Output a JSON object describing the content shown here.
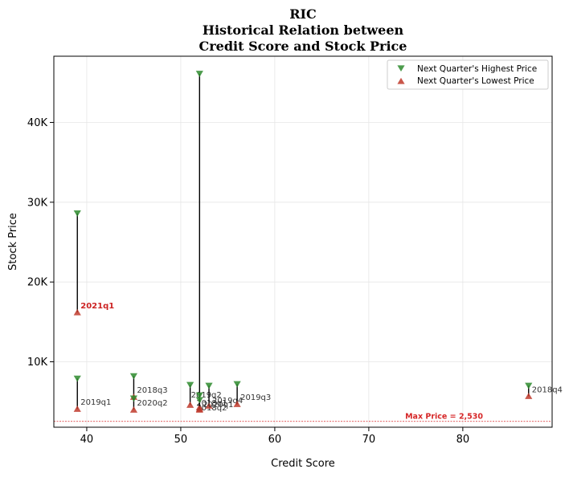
{
  "chart_data": {
    "type": "scatter",
    "title_lines": [
      "RIC",
      "Historical Relation between",
      "Credit Score and Stock Price"
    ],
    "xlabel": "Credit Score",
    "ylabel": "Stock Price",
    "xlim": [
      36.5,
      89.5
    ],
    "ylim": [
      1800,
      48300
    ],
    "xticks": [
      40,
      50,
      60,
      70,
      80
    ],
    "xtick_labels": [
      "40",
      "50",
      "60",
      "70",
      "80"
    ],
    "yticks": [
      10000,
      20000,
      30000,
      40000
    ],
    "ytick_labels": [
      "10K",
      "20K",
      "30K",
      "40K"
    ],
    "grid": true,
    "legend_position": "top-right",
    "series": [
      {
        "name": "Next Quarter's Highest Price",
        "color": "#2e8b2e",
        "marker": "triangle-down"
      },
      {
        "name": "Next Quarter's Lowest Price",
        "color": "#c0392b",
        "marker": "triangle-up"
      }
    ],
    "points": [
      {
        "label": "2021q1",
        "x": 39,
        "high": 28600,
        "low": 16200,
        "highlight": true
      },
      {
        "label": "2019q1",
        "x": 39,
        "high": 7900,
        "low": 4100,
        "highlight": false
      },
      {
        "label": "2018q3",
        "x": 45,
        "high": 8200,
        "low": 5600,
        "highlight": false
      },
      {
        "label": "2020q2",
        "x": 45,
        "high": 5400,
        "low": 4000,
        "highlight": false
      },
      {
        "label": "2019q2",
        "x": 51,
        "high": 7100,
        "low": 4600,
        "highlight": false
      },
      {
        "label": "2018q1",
        "x": 52,
        "high": 46100,
        "low": 4000,
        "highlight": false
      },
      {
        "label": "2018q2",
        "x": 52,
        "high": 5800,
        "low": 4300,
        "highlight": false
      },
      {
        "label": "2019q4",
        "x": 53,
        "high": 7000,
        "low": 4500,
        "highlight": false
      },
      {
        "label": "2020q1",
        "x": 52,
        "high": 5200,
        "low": 4100,
        "highlight": false
      },
      {
        "label": "2019q3",
        "x": 56,
        "high": 7200,
        "low": 4700,
        "highlight": false
      },
      {
        "label": "2018q4",
        "x": 87,
        "high": 7000,
        "low": 5700,
        "highlight": false
      }
    ],
    "reference_line": {
      "value": 2530,
      "label": "Max Price = 2,530",
      "color": "#d62728"
    }
  }
}
